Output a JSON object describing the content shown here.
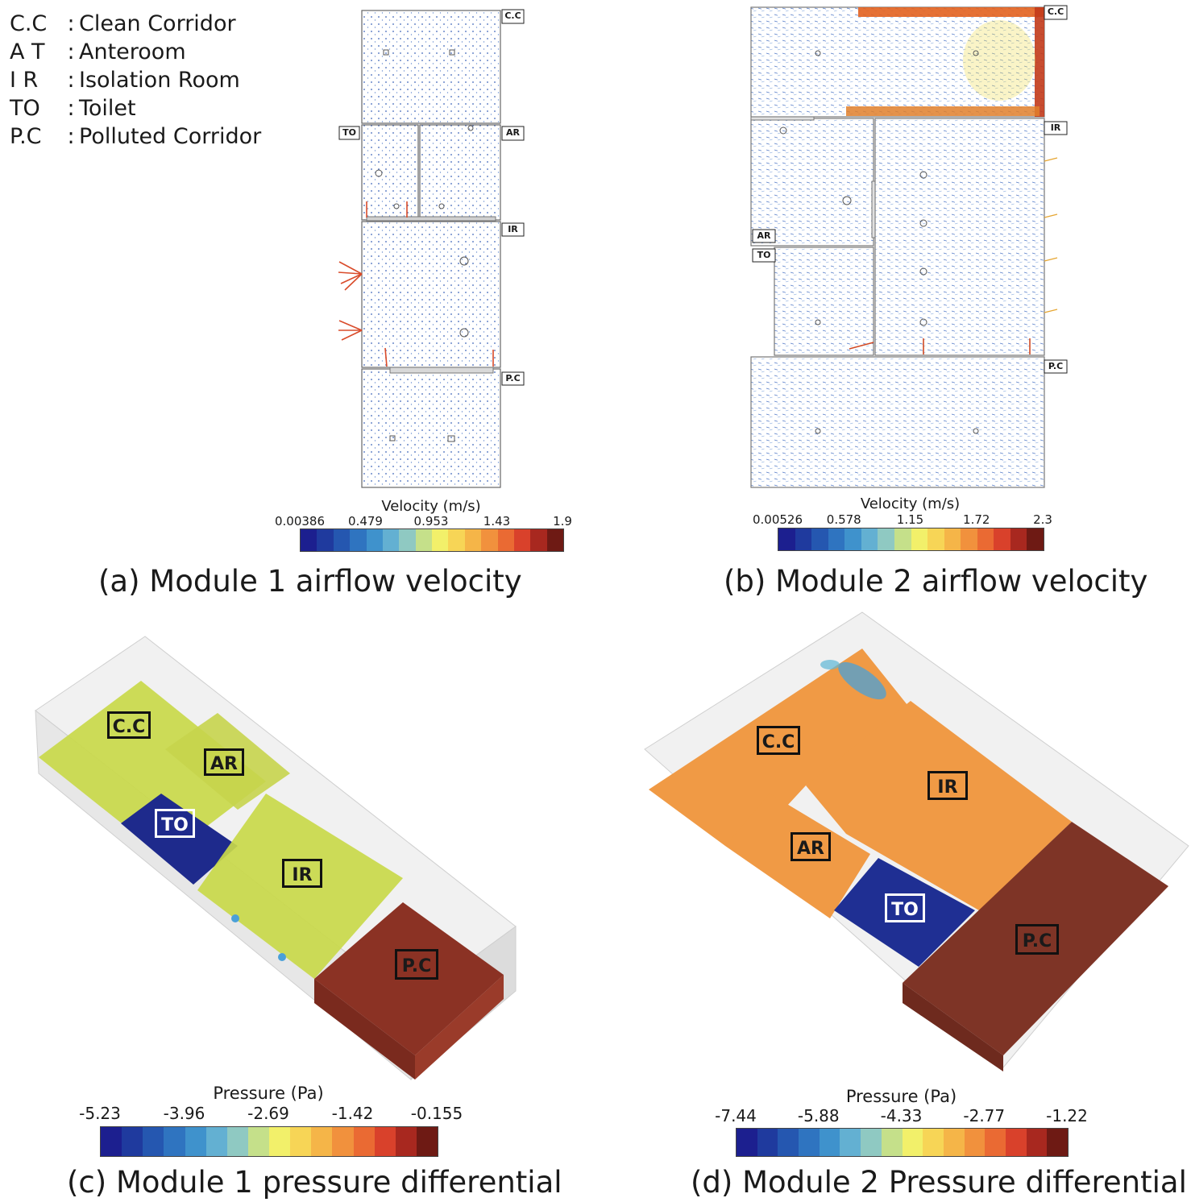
{
  "legend": [
    {
      "abbr": "C.C",
      "colon": ":",
      "name": "Clean Corridor"
    },
    {
      "abbr": "A T",
      "colon": ":",
      "name": "Anteroom"
    },
    {
      "abbr": "I R",
      "colon": ":",
      "name": "Isolation Room"
    },
    {
      "abbr": "TO",
      "colon": ":",
      "name": "Toilet"
    },
    {
      "abbr": "P.C",
      "colon": ":",
      "name": "Polluted Corridor"
    }
  ],
  "panel_a": {
    "caption": "(a) Module 1 airflow velocity",
    "tags": {
      "cc": "C.C",
      "to": "TO",
      "ar": "AR",
      "ir": "IR",
      "pc": "P.C"
    },
    "colorbar": {
      "title": "Velocity (m/s)",
      "ticks": [
        "0.00386",
        "0.479",
        "0.953",
        "1.43",
        "1.9"
      ]
    }
  },
  "panel_b": {
    "caption": "(b) Module 2 airflow velocity",
    "tags": {
      "cc": "C.C",
      "ir": "IR",
      "ar": "AR",
      "to": "TO",
      "pc": "P.C"
    },
    "colorbar": {
      "title": "Velocity (m/s)",
      "ticks": [
        "0.00526",
        "0.578",
        "1.15",
        "1.72",
        "2.3"
      ]
    }
  },
  "panel_c": {
    "caption": "(c) Module 1 pressure differential",
    "tags": {
      "cc": "C.C",
      "ar": "AR",
      "to": "TO",
      "ir": "IR",
      "pc": "P.C"
    },
    "colorbar": {
      "title": "Pressure (Pa)",
      "ticks": [
        "-5.23",
        "-3.96",
        "-2.69",
        "-1.42",
        "-0.155"
      ]
    }
  },
  "panel_d": {
    "caption": "(d) Module 2 Pressure differential",
    "tags": {
      "cc": "C.C",
      "ir": "IR",
      "ar": "AR",
      "to": "TO",
      "pc": "P.C"
    },
    "colorbar": {
      "title": "Pressure (Pa)",
      "ticks": [
        "-7.44",
        "-5.88",
        "-4.33",
        "-2.77",
        "-1.22"
      ]
    }
  },
  "colors": {
    "colormap": [
      "#1c1f8f",
      "#1f3a9e",
      "#2557b0",
      "#2f74c0",
      "#3f92cc",
      "#63b0d2",
      "#8fc9c2",
      "#c5e08a",
      "#f2f06a",
      "#f7d556",
      "#f5b548",
      "#f1913d",
      "#ea6a33",
      "#d9412b",
      "#a8281f",
      "#6e1a14"
    ],
    "cc_m1": "#c9d94a",
    "to_m1": "#1e2a8c",
    "pc_m1": "#8b3224",
    "orange_m2": "#f09a45",
    "to_m2": "#1f2f93",
    "pc_m2": "#7e3426"
  }
}
